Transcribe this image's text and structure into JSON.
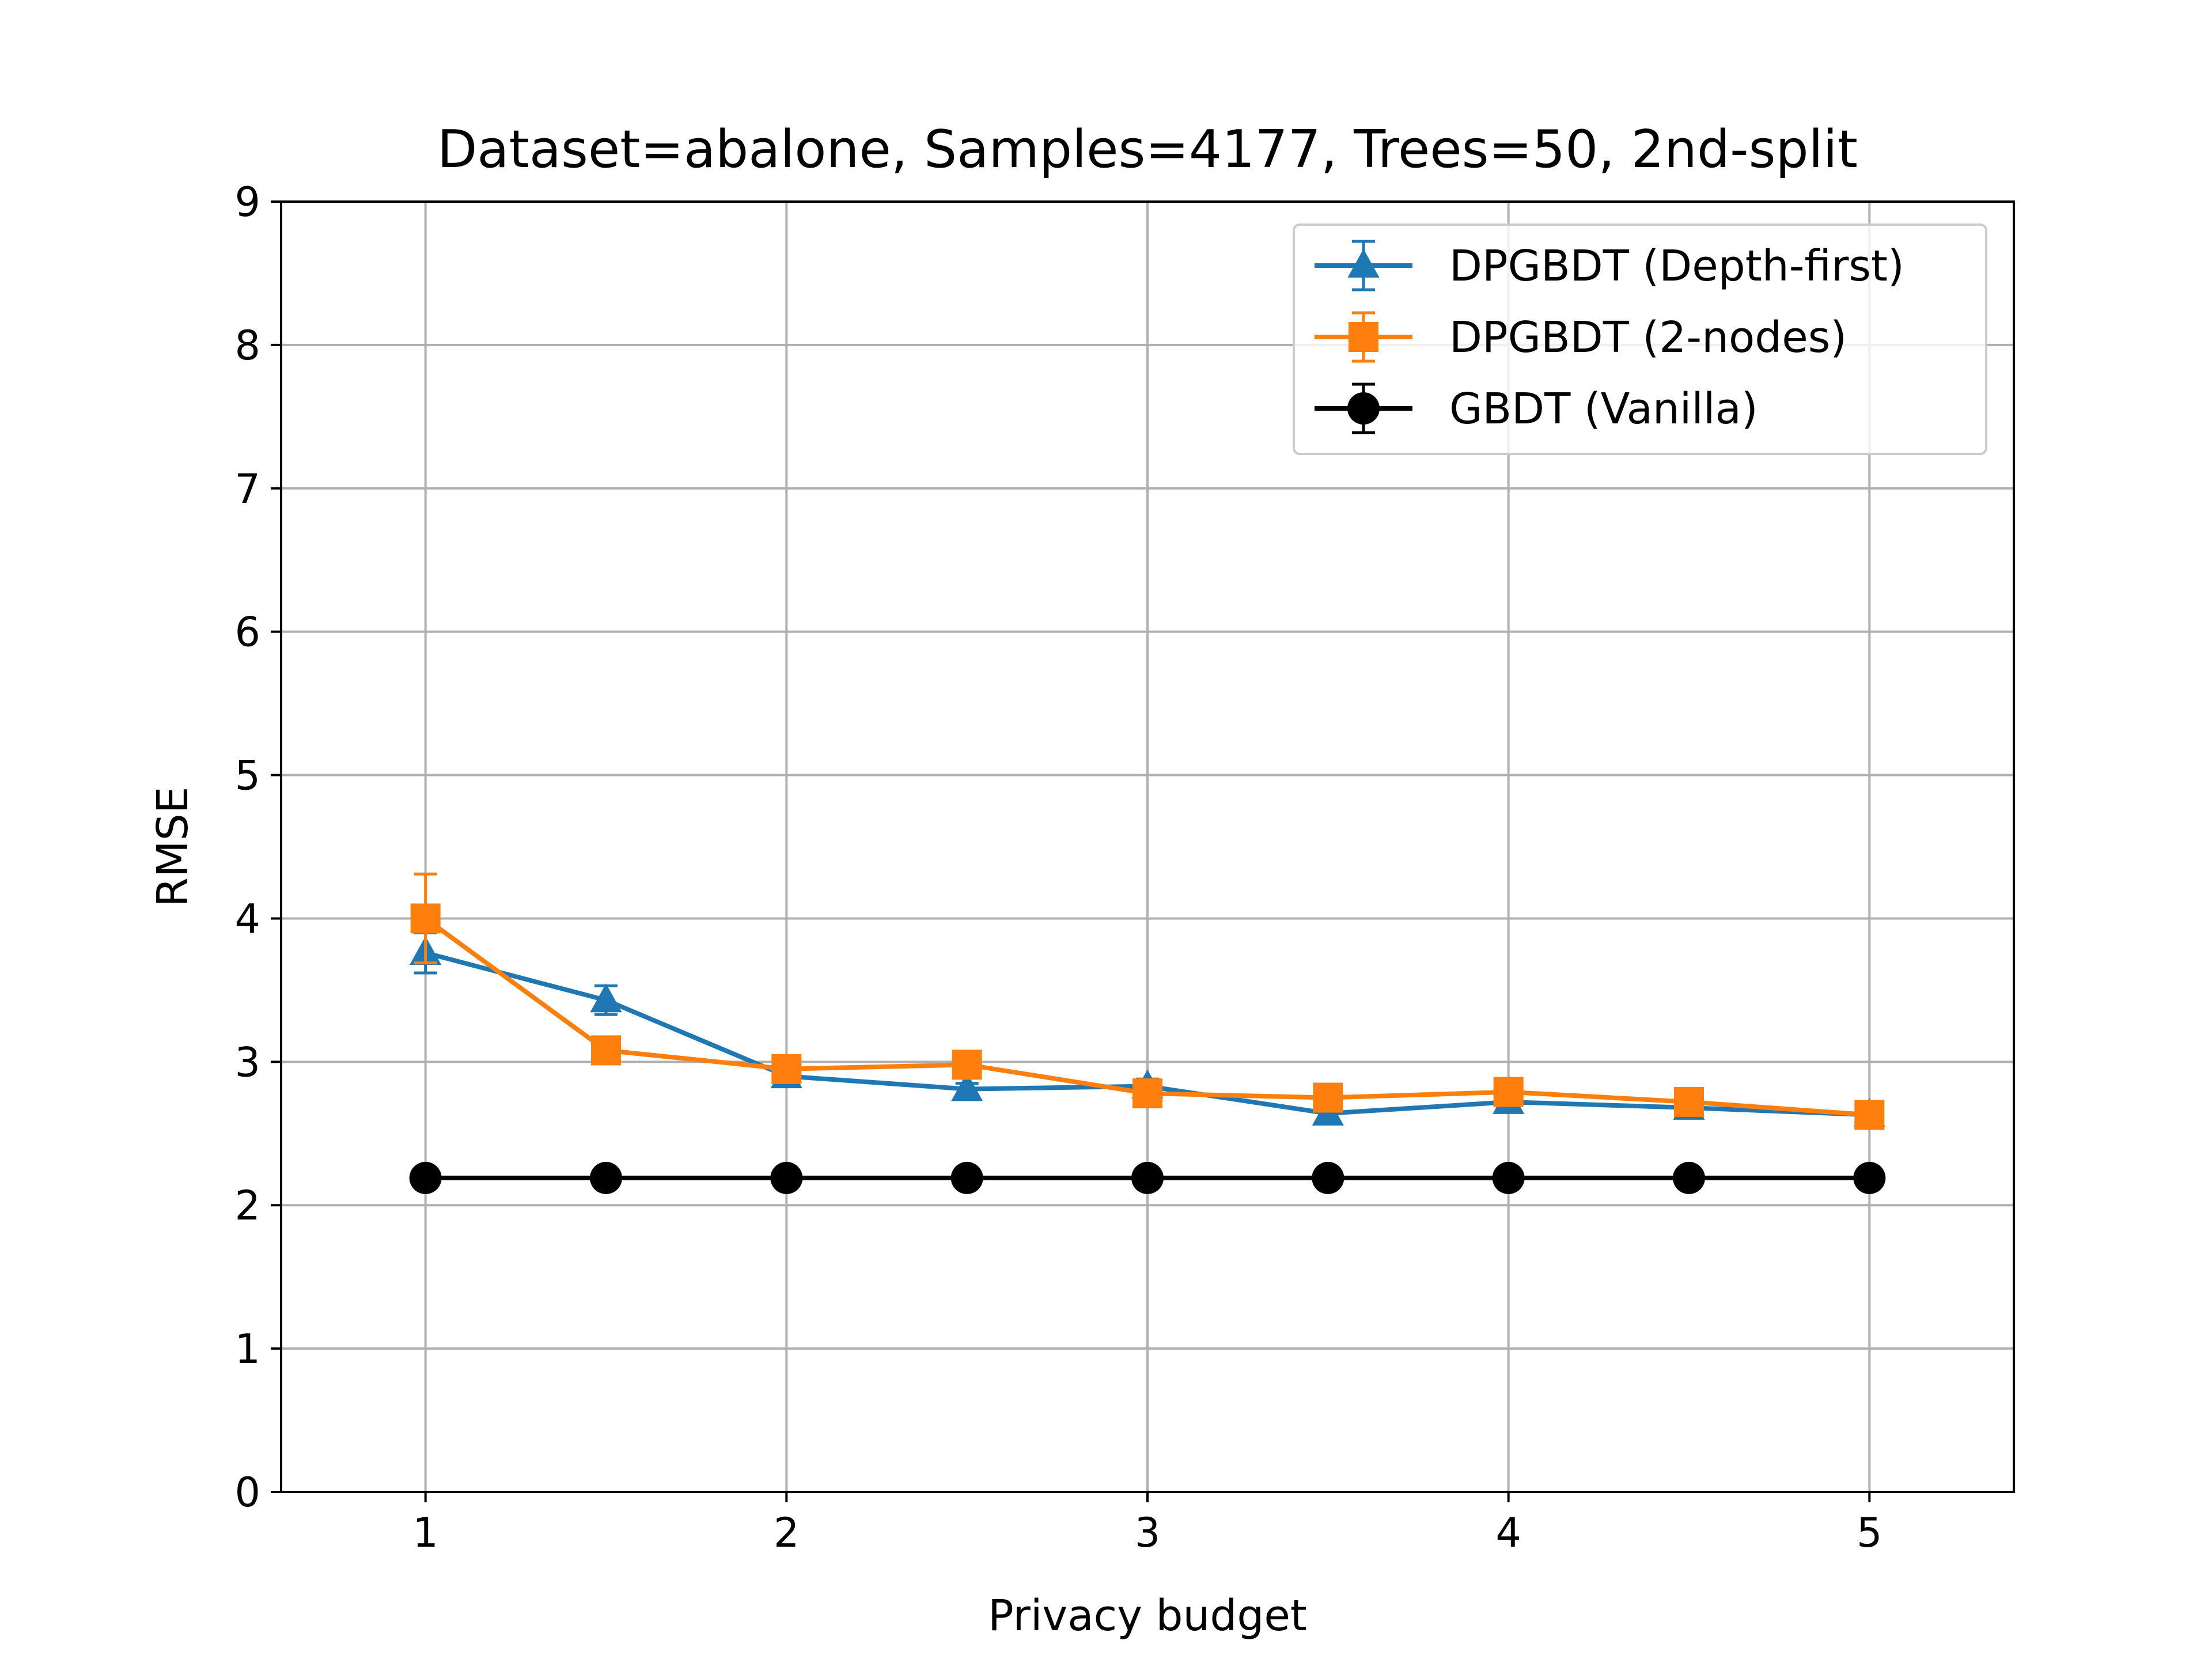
{
  "chart_data": {
    "type": "line",
    "title": "Dataset=abalone, Samples=4177, Trees=50, 2nd-split",
    "xlabel": "Privacy budget",
    "ylabel": "RMSE",
    "xlim": [
      0.6,
      5.4
    ],
    "ylim": [
      0,
      9
    ],
    "xticks": [
      1,
      2,
      3,
      4,
      5
    ],
    "yticks": [
      0,
      1,
      2,
      3,
      4,
      5,
      6,
      7,
      8,
      9
    ],
    "grid": true,
    "legend_position": "top-right",
    "x": [
      1,
      1.5,
      2,
      2.5,
      3,
      3.5,
      4,
      4.5,
      5
    ],
    "series": [
      {
        "name": "DPGBDT (Depth-first)",
        "color": "#1f77b4",
        "marker": "triangle",
        "values": [
          3.76,
          3.43,
          2.9,
          2.81,
          2.83,
          2.64,
          2.72,
          2.68,
          2.63
        ],
        "errors": [
          0.14,
          0.1,
          0.05,
          0.04,
          0.05,
          0.04,
          0.04,
          0.03,
          0.03
        ]
      },
      {
        "name": "DPGBDT (2-nodes)",
        "color": "#ff7f0e",
        "marker": "square",
        "values": [
          4.0,
          3.08,
          2.95,
          2.98,
          2.78,
          2.75,
          2.79,
          2.72,
          2.63
        ],
        "errors": [
          0.31,
          0.08,
          0.05,
          0.05,
          0.04,
          0.03,
          0.04,
          0.03,
          0.03
        ]
      },
      {
        "name": "GBDT (Vanilla)",
        "color": "#000000",
        "marker": "circle",
        "values": [
          2.19,
          2.19,
          2.19,
          2.19,
          2.19,
          2.19,
          2.19,
          2.19,
          2.19
        ],
        "errors": [
          0.02,
          0.02,
          0.02,
          0.02,
          0.02,
          0.02,
          0.02,
          0.02,
          0.02
        ]
      }
    ]
  }
}
